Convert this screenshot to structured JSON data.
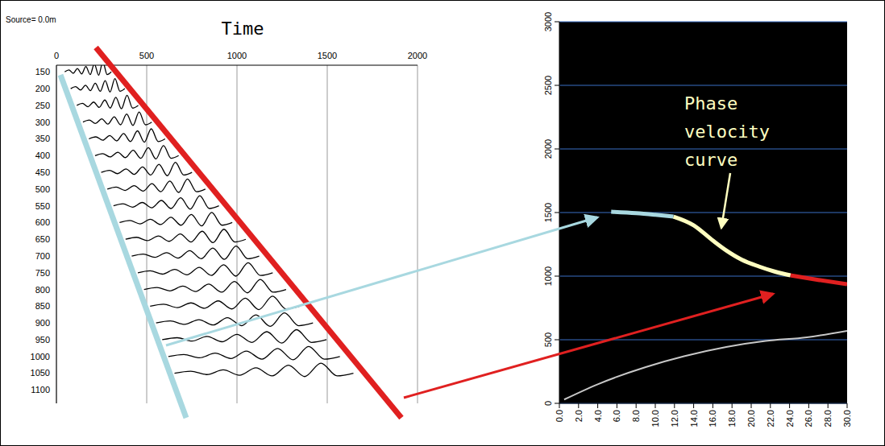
{
  "chart_data": [
    {
      "type": "line",
      "title": "Time",
      "subtitle": "Source= 0.0m",
      "xlim": [
        0,
        2000
      ],
      "xticks": [
        0,
        500,
        1000,
        1500,
        2000
      ],
      "ylim": [
        130,
        1140
      ],
      "yticks": [
        150,
        200,
        250,
        300,
        350,
        400,
        450,
        500,
        550,
        600,
        650,
        700,
        750,
        800,
        850,
        900,
        950,
        1000,
        1050,
        1100
      ],
      "grid": "x",
      "color": "#000000",
      "traces": [
        {
          "offset": 150,
          "t": [
            46,
            69,
            93,
            116,
            140,
            163,
            187,
            210,
            234,
            257,
            281,
            304
          ],
          "a": [
            0,
            6,
            -4,
            10,
            -6,
            16,
            -8,
            24,
            -10,
            30,
            -8,
            0
          ]
        },
        {
          "offset": 200,
          "t": [
            79,
            106,
            134,
            161,
            188,
            215,
            243,
            270,
            297,
            324,
            352,
            379
          ],
          "a": [
            0,
            6,
            -4,
            10,
            -6,
            16,
            -8,
            24,
            -10,
            30,
            -8,
            0
          ]
        },
        {
          "offset": 250,
          "t": [
            113,
            144,
            175,
            206,
            237,
            268,
            298,
            329,
            360,
            391,
            422,
            453
          ],
          "a": [
            0,
            6,
            -4,
            10,
            -6,
            16,
            -8,
            24,
            -10,
            30,
            -8,
            0
          ]
        },
        {
          "offset": 300,
          "t": [
            147,
            182,
            216,
            251,
            285,
            320,
            355,
            389,
            424,
            458,
            493,
            528
          ],
          "a": [
            0,
            6,
            -4,
            10,
            -6,
            16,
            -8,
            24,
            -10,
            30,
            -8,
            0
          ]
        },
        {
          "offset": 350,
          "t": [
            180,
            218,
            257,
            295,
            334,
            372,
            410,
            449,
            487,
            525,
            564,
            602
          ],
          "a": [
            0,
            6,
            -4,
            10,
            -6,
            16,
            -8,
            24,
            -10,
            30,
            -8,
            0
          ]
        },
        {
          "offset": 400,
          "t": [
            214,
            256,
            298,
            340,
            382,
            425,
            467,
            509,
            551,
            593,
            635,
            677
          ],
          "a": [
            0,
            6,
            -4,
            10,
            -6,
            16,
            -8,
            24,
            -10,
            30,
            -8,
            0
          ]
        },
        {
          "offset": 450,
          "t": [
            248,
            294,
            339,
            385,
            431,
            477,
            522,
            568,
            614,
            659,
            705,
            751
          ],
          "a": [
            0,
            6,
            -4,
            10,
            -6,
            16,
            -8,
            24,
            -10,
            30,
            -8,
            0
          ]
        },
        {
          "offset": 500,
          "t": [
            282,
            331,
            381,
            430,
            480,
            529,
            578,
            628,
            677,
            726,
            776,
            825
          ],
          "a": [
            0,
            6,
            -4,
            10,
            -6,
            16,
            -8,
            24,
            -10,
            30,
            -8,
            0
          ]
        },
        {
          "offset": 550,
          "t": [
            316,
            369,
            422,
            475,
            528,
            581,
            635,
            688,
            741,
            794,
            847,
            900
          ],
          "a": [
            0,
            6,
            -4,
            10,
            -6,
            16,
            -8,
            24,
            -10,
            30,
            -8,
            0
          ]
        },
        {
          "offset": 600,
          "t": [
            350,
            407,
            463,
            520,
            577,
            634,
            690,
            747,
            804,
            860,
            917,
            974
          ],
          "a": [
            0,
            6,
            -4,
            10,
            -6,
            16,
            -8,
            24,
            -10,
            30,
            -8,
            0
          ]
        },
        {
          "offset": 650,
          "t": [
            383,
            444,
            504,
            565,
            625,
            686,
            746,
            807,
            867,
            928,
            988,
            1049
          ],
          "a": [
            0,
            6,
            -4,
            10,
            -6,
            16,
            -8,
            24,
            -10,
            30,
            -8,
            0
          ]
        },
        {
          "offset": 700,
          "t": [
            417,
            481,
            545,
            610,
            674,
            738,
            802,
            866,
            930,
            995,
            1059,
            1123
          ],
          "a": [
            0,
            6,
            -4,
            10,
            -6,
            16,
            -8,
            24,
            -10,
            30,
            -8,
            0
          ]
        },
        {
          "offset": 750,
          "t": [
            451,
            519,
            587,
            655,
            723,
            791,
            858,
            926,
            994,
            1062,
            1130,
            1198
          ],
          "a": [
            0,
            6,
            -4,
            10,
            -6,
            16,
            -8,
            24,
            -10,
            30,
            -8,
            0
          ]
        },
        {
          "offset": 800,
          "t": [
            485,
            557,
            628,
            700,
            771,
            843,
            915,
            986,
            1058,
            1129,
            1201,
            1272
          ],
          "a": [
            0,
            6,
            -4,
            10,
            -6,
            16,
            -8,
            24,
            -10,
            30,
            -8,
            0
          ]
        },
        {
          "offset": 850,
          "t": [
            519,
            594,
            670,
            745,
            820,
            896,
            971,
            1046,
            1121,
            1197,
            1272,
            1347
          ],
          "a": [
            0,
            6,
            -4,
            10,
            -6,
            16,
            -8,
            24,
            -10,
            30,
            -8,
            0
          ]
        },
        {
          "offset": 900,
          "t": [
            552,
            631,
            710,
            789,
            868,
            947,
            1026,
            1105,
            1184,
            1263,
            1342,
            1421
          ],
          "a": [
            0,
            6,
            -4,
            10,
            -6,
            16,
            -8,
            24,
            -10,
            30,
            -8,
            0
          ]
        },
        {
          "offset": 950,
          "t": [
            586,
            669,
            751,
            834,
            917,
            1000,
            1082,
            1165,
            1248,
            1330,
            1413,
            1496
          ],
          "a": [
            0,
            6,
            -4,
            10,
            -6,
            16,
            -8,
            24,
            -10,
            30,
            -8,
            0
          ]
        },
        {
          "offset": 1000,
          "t": [
            620,
            706,
            793,
            879,
            966,
            1052,
            1138,
            1225,
            1311,
            1397,
            1484,
            1570
          ],
          "a": [
            0,
            6,
            -4,
            10,
            -6,
            16,
            -8,
            24,
            -10,
            30,
            -8,
            0
          ]
        },
        {
          "offset": 1050,
          "t": [
            654,
            744,
            834,
            924,
            1014,
            1105,
            1195,
            1285,
            1375,
            1465,
            1555,
            1645
          ],
          "a": [
            0,
            6,
            -4,
            10,
            -6,
            16,
            -8,
            24,
            -10,
            30,
            -8,
            0
          ]
        }
      ]
    },
    {
      "type": "line",
      "annotation": "Phase velocity curve",
      "xlim": [
        0,
        30
      ],
      "xticks": [
        {
          "value": 0,
          "label": "0.0"
        },
        {
          "value": 2,
          "label": "2.0"
        },
        {
          "value": 4,
          "label": "4.0"
        },
        {
          "value": 6,
          "label": "6.0"
        },
        {
          "value": 8,
          "label": "8.0"
        },
        {
          "value": 10,
          "label": "10.0"
        },
        {
          "value": 12,
          "label": "12.0"
        },
        {
          "value": 14,
          "label": "14.0"
        },
        {
          "value": 16,
          "label": "16.0"
        },
        {
          "value": 18,
          "label": "18.0"
        },
        {
          "value": 20,
          "label": "20.0"
        },
        {
          "value": 22,
          "label": "22.0"
        },
        {
          "value": 24,
          "label": "24.0"
        },
        {
          "value": 26,
          "label": "26.0"
        },
        {
          "value": 28,
          "label": "28.0"
        },
        {
          "value": 30,
          "label": "30.0"
        }
      ],
      "ylim": [
        0,
        3000
      ],
      "yticks": [
        0,
        500,
        1000,
        1500,
        2000,
        2500,
        3000
      ],
      "grid": "y",
      "series": [
        {
          "color": "#c8c8c8",
          "x": [
            0.5,
            4,
            9,
            13,
            17.4,
            21.5,
            25.8,
            30
          ],
          "values": [
            30,
            150,
            285,
            370,
            443,
            490,
            519,
            570
          ]
        },
        {
          "color": "#a8d8e0",
          "x": [
            5.4,
            8,
            10,
            11.9
          ],
          "values": [
            1506,
            1495,
            1482,
            1468
          ]
        },
        {
          "color": "#ffffc0",
          "x": [
            11.9,
            14,
            16,
            17.4,
            19,
            20.8,
            22.5,
            24.1
          ],
          "values": [
            1468,
            1400,
            1280,
            1202,
            1130,
            1076,
            1035,
            1006
          ]
        },
        {
          "color": "#e02020",
          "x": [
            24.1,
            27,
            30
          ],
          "values": [
            1006,
            970,
            937
          ]
        }
      ]
    }
  ]
}
